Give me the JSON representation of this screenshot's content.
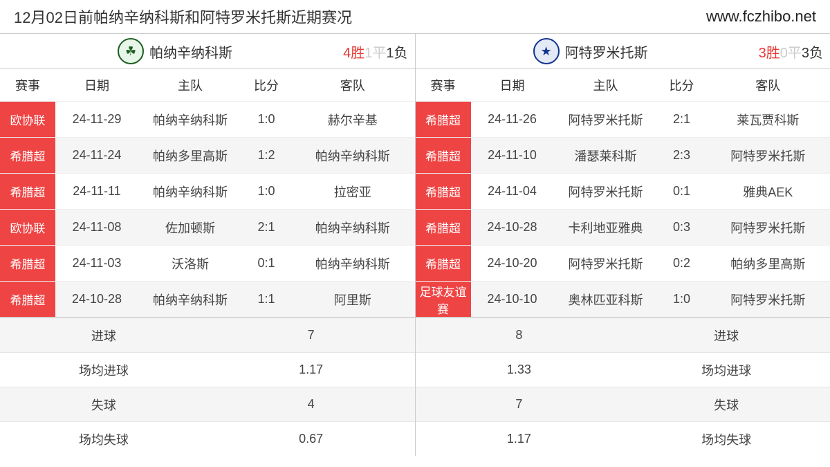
{
  "header": {
    "title": "12月02日前帕纳辛纳科斯和阿特罗米托斯近期赛况",
    "site": "www.fczhibo.net"
  },
  "colors": {
    "comp_bg": "#ef4444",
    "row_alt_bg": "#f5f5f5",
    "win": "#e53935",
    "draw": "#cccccc",
    "loss": "#333333"
  },
  "columns_header": [
    "赛事",
    "日期",
    "主队",
    "比分",
    "客队"
  ],
  "teams": {
    "left": {
      "name": "帕纳辛纳科斯",
      "logo_style": "green",
      "logo_glyph": "☘",
      "record": {
        "w": "4胜",
        "d": "1平",
        "l": "1负"
      },
      "matches": [
        {
          "comp": "欧协联",
          "date": "24-11-29",
          "home": "帕纳辛纳科斯",
          "score": "1:0",
          "away": "赫尔辛基"
        },
        {
          "comp": "希腊超",
          "date": "24-11-24",
          "home": "帕纳多里高斯",
          "score": "1:2",
          "away": "帕纳辛纳科斯"
        },
        {
          "comp": "希腊超",
          "date": "24-11-11",
          "home": "帕纳辛纳科斯",
          "score": "1:0",
          "away": "拉密亚"
        },
        {
          "comp": "欧协联",
          "date": "24-11-08",
          "home": "佐加顿斯",
          "score": "2:1",
          "away": "帕纳辛纳科斯"
        },
        {
          "comp": "希腊超",
          "date": "24-11-03",
          "home": "沃洛斯",
          "score": "0:1",
          "away": "帕纳辛纳科斯"
        },
        {
          "comp": "希腊超",
          "date": "24-10-28",
          "home": "帕纳辛纳科斯",
          "score": "1:1",
          "away": "阿里斯"
        }
      ],
      "stats": [
        {
          "label": "进球",
          "value": "7"
        },
        {
          "label": "场均进球",
          "value": "1.17"
        },
        {
          "label": "失球",
          "value": "4"
        },
        {
          "label": "场均失球",
          "value": "0.67"
        }
      ]
    },
    "right": {
      "name": "阿特罗米托斯",
      "logo_style": "blue",
      "logo_glyph": "★",
      "record": {
        "w": "3胜",
        "d": "0平",
        "l": "3负"
      },
      "matches": [
        {
          "comp": "希腊超",
          "date": "24-11-26",
          "home": "阿特罗米托斯",
          "score": "2:1",
          "away": "莱瓦贾科斯"
        },
        {
          "comp": "希腊超",
          "date": "24-11-10",
          "home": "潘瑟莱科斯",
          "score": "2:3",
          "away": "阿特罗米托斯"
        },
        {
          "comp": "希腊超",
          "date": "24-11-04",
          "home": "阿特罗米托斯",
          "score": "0:1",
          "away": "雅典AEK"
        },
        {
          "comp": "希腊超",
          "date": "24-10-28",
          "home": "卡利地亚雅典",
          "score": "0:3",
          "away": "阿特罗米托斯"
        },
        {
          "comp": "希腊超",
          "date": "24-10-20",
          "home": "阿特罗米托斯",
          "score": "0:2",
          "away": "帕纳多里高斯"
        },
        {
          "comp": "足球友谊赛",
          "date": "24-10-10",
          "home": "奥林匹亚科斯",
          "score": "1:0",
          "away": "阿特罗米托斯"
        }
      ],
      "stats": [
        {
          "label": "进球",
          "value": "8"
        },
        {
          "label": "场均进球",
          "value": "1.33"
        },
        {
          "label": "失球",
          "value": "7"
        },
        {
          "label": "场均失球",
          "value": "1.17"
        }
      ]
    }
  }
}
